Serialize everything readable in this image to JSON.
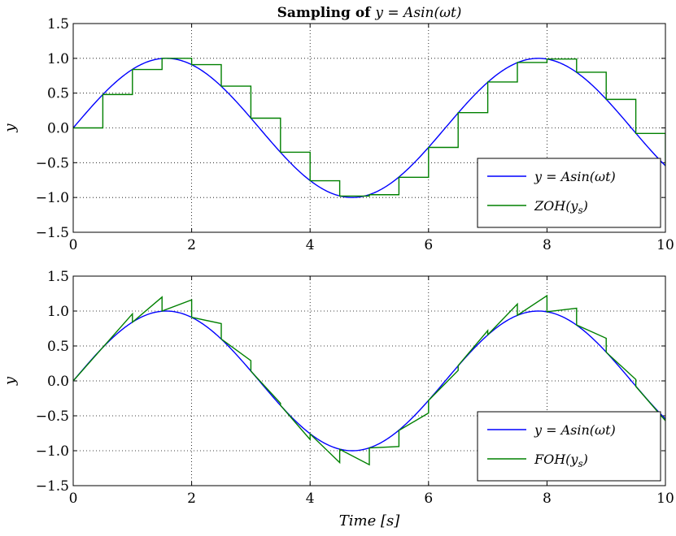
{
  "chart_data": [
    {
      "type": "line",
      "title_prefix": "Sampling of ",
      "title_math": "y = Asin(ωt)",
      "xlabel": "",
      "ylabel": "y",
      "xlim": [
        0,
        10
      ],
      "ylim": [
        -1.5,
        1.5
      ],
      "x_ticks": [
        "0",
        "2",
        "4",
        "6",
        "8",
        "10"
      ],
      "y_ticks": [
        "1.5",
        "1.0",
        "0.5",
        "0.0",
        "-0.5",
        "-1.0",
        "-1.5"
      ],
      "grid": true,
      "legend_position": "lower-right",
      "series": [
        {
          "name": "y = Asin(ωt)",
          "color": "#0000ff",
          "function": "sin",
          "x_range": [
            0,
            10
          ]
        },
        {
          "name": "ZOH(y_s)",
          "color": "#008000",
          "style": "step-post",
          "sample_period": 0.5,
          "x": [
            0,
            0.5,
            1,
            1.5,
            2,
            2.5,
            3,
            3.5,
            4,
            4.5,
            5,
            5.5,
            6,
            6.5,
            7,
            7.5,
            8,
            8.5,
            9,
            9.5,
            10
          ],
          "y": [
            0,
            0.48,
            0.84,
            1.0,
            0.91,
            0.6,
            0.14,
            -0.35,
            -0.76,
            -0.98,
            -0.96,
            -0.71,
            -0.28,
            0.22,
            0.66,
            0.94,
            0.99,
            0.8,
            0.41,
            -0.08,
            -0.54
          ]
        }
      ],
      "legend": [
        {
          "label": "y = Asin(ωt)",
          "color": "#0000ff"
        },
        {
          "label": "ZOH(y_s)",
          "color": "#008000"
        }
      ]
    },
    {
      "type": "line",
      "title": "",
      "xlabel": "Time [s]",
      "ylabel": "y",
      "xlim": [
        0,
        10
      ],
      "ylim": [
        -1.5,
        1.5
      ],
      "x_ticks": [
        "0",
        "2",
        "4",
        "6",
        "8",
        "10"
      ],
      "y_ticks": [
        "1.5",
        "1.0",
        "0.5",
        "0.0",
        "-0.5",
        "-1.0",
        "-1.5"
      ],
      "grid": true,
      "legend_position": "lower-right",
      "series": [
        {
          "name": "y = Asin(ωt)",
          "color": "#0000ff",
          "function": "sin",
          "x_range": [
            0,
            10
          ]
        },
        {
          "name": "FOH(y_s)",
          "color": "#008000",
          "style": "first-order-hold-predictive",
          "sample_period": 0.5,
          "x": [
            0,
            0.5,
            1,
            1.5,
            2,
            2.5,
            3,
            3.5,
            4,
            4.5,
            5,
            5.5,
            6,
            6.5,
            7,
            7.5,
            8,
            8.5,
            9,
            9.5,
            10
          ],
          "y": [
            0,
            0.48,
            0.84,
            1.0,
            0.91,
            0.6,
            0.14,
            -0.35,
            -0.76,
            -0.98,
            -0.96,
            -0.71,
            -0.28,
            0.22,
            0.66,
            0.94,
            0.99,
            0.8,
            0.41,
            -0.08,
            -0.54
          ]
        }
      ],
      "legend": [
        {
          "label": "y = Asin(ωt)",
          "color": "#0000ff"
        },
        {
          "label": "FOH(y_s)",
          "color": "#008000"
        }
      ]
    }
  ]
}
